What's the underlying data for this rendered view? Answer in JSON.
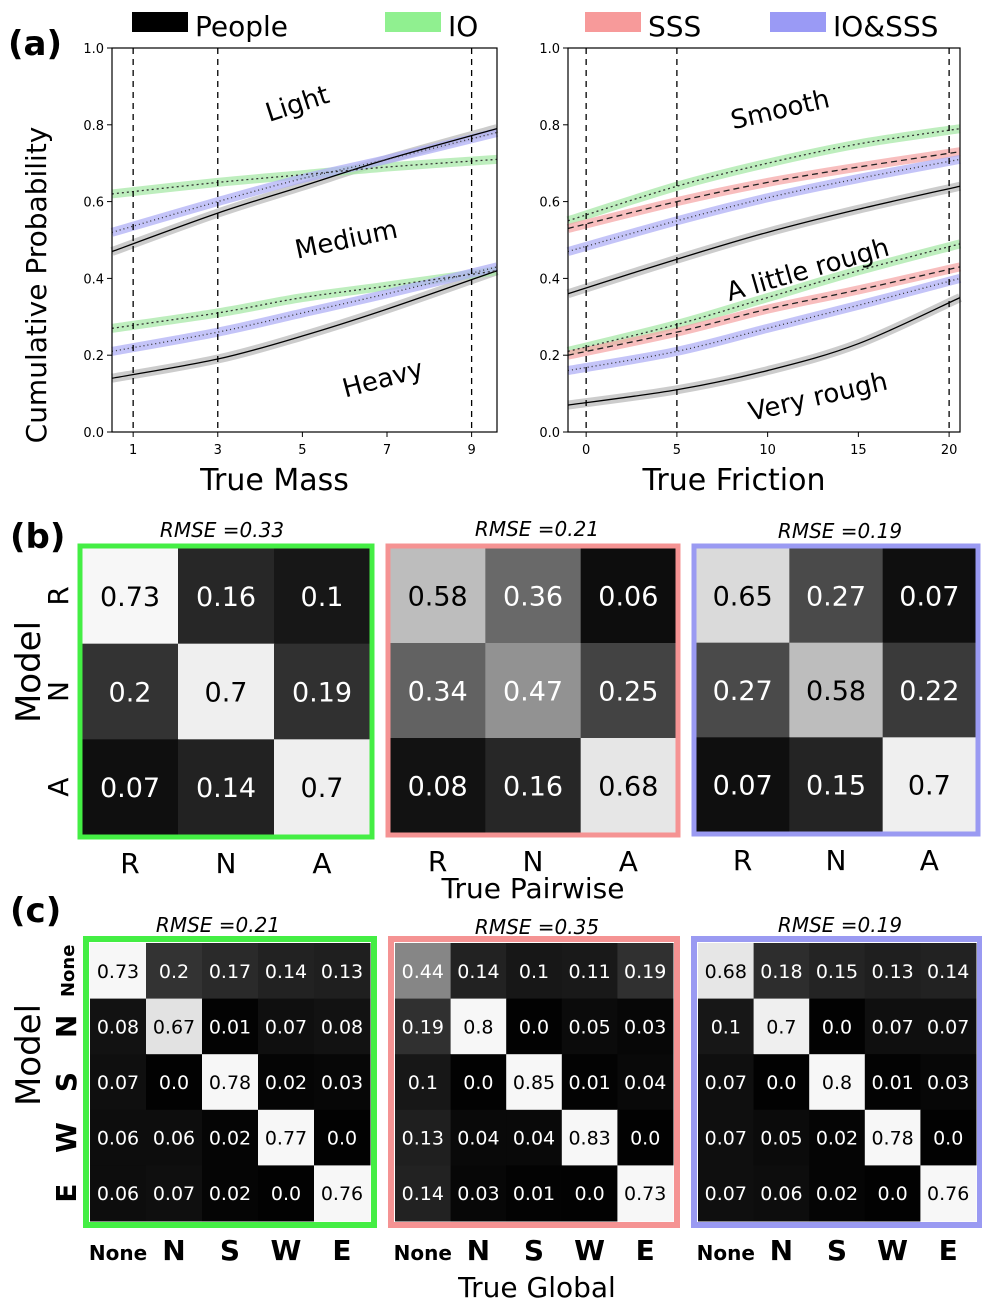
{
  "panel_labels": {
    "a": "(a)",
    "b": "(b)",
    "c": "(c)"
  },
  "legend": [
    {
      "name": "People",
      "color": "#000000"
    },
    {
      "name": "IO",
      "color": "#90f090"
    },
    {
      "name": "SSS",
      "color": "#f79a9a"
    },
    {
      "name": "IO&SSS",
      "color": "#9a9af5"
    }
  ],
  "chart_data": [
    {
      "type": "line",
      "panel": "a-left",
      "xlabel": "True Mass",
      "ylabel": "Cumulative Probability",
      "xlim": [
        0.5,
        9.6
      ],
      "ylim": [
        0,
        1
      ],
      "xticks": [
        "1",
        "3",
        "5",
        "7",
        "9"
      ],
      "yticks": [
        "0.0",
        "0.2",
        "0.4",
        "0.6",
        "0.8",
        "1.0"
      ],
      "vlines": [
        1,
        3,
        9
      ],
      "region_labels": [
        "Light",
        "Medium",
        "Heavy"
      ],
      "series": [
        {
          "name": "People",
          "boundary": "upper",
          "x": [
            0.5,
            3,
            5,
            7,
            9.6
          ],
          "y": [
            0.47,
            0.57,
            0.64,
            0.71,
            0.79
          ]
        },
        {
          "name": "People",
          "boundary": "lower",
          "x": [
            0.5,
            3,
            5,
            7,
            9.6
          ],
          "y": [
            0.14,
            0.19,
            0.25,
            0.32,
            0.42
          ]
        },
        {
          "name": "IO",
          "boundary": "upper",
          "x": [
            0.5,
            3,
            5,
            7,
            9.6
          ],
          "y": [
            0.62,
            0.65,
            0.67,
            0.69,
            0.71
          ]
        },
        {
          "name": "IO",
          "boundary": "lower",
          "x": [
            0.5,
            3,
            5,
            7,
            9.6
          ],
          "y": [
            0.27,
            0.31,
            0.35,
            0.38,
            0.42
          ]
        },
        {
          "name": "IO&SSS",
          "boundary": "upper",
          "x": [
            0.5,
            3,
            5,
            7,
            9.6
          ],
          "y": [
            0.52,
            0.6,
            0.66,
            0.71,
            0.78
          ]
        },
        {
          "name": "IO&SSS",
          "boundary": "lower",
          "x": [
            0.5,
            3,
            5,
            7,
            9.6
          ],
          "y": [
            0.21,
            0.26,
            0.31,
            0.36,
            0.43
          ]
        }
      ]
    },
    {
      "type": "line",
      "panel": "a-right",
      "xlabel": "True Friction",
      "ylabel": "",
      "xlim": [
        -1,
        20.6
      ],
      "ylim": [
        0,
        1
      ],
      "xticks": [
        "0",
        "5",
        "10",
        "15",
        "20"
      ],
      "yticks": [
        "0.0",
        "0.2",
        "0.4",
        "0.6",
        "0.8",
        "1.0"
      ],
      "vlines": [
        0,
        5,
        20
      ],
      "region_labels": [
        "Smooth",
        "A little rough",
        "Very rough"
      ],
      "series": [
        {
          "name": "People",
          "boundary": "upper",
          "x": [
            -1,
            5,
            10,
            15,
            20.6
          ],
          "y": [
            0.36,
            0.45,
            0.52,
            0.58,
            0.64
          ]
        },
        {
          "name": "People",
          "boundary": "lower",
          "x": [
            -1,
            5,
            10,
            15,
            20.6
          ],
          "y": [
            0.07,
            0.11,
            0.16,
            0.23,
            0.35
          ]
        },
        {
          "name": "IO",
          "boundary": "upper",
          "x": [
            -1,
            5,
            10,
            15,
            20.6
          ],
          "y": [
            0.55,
            0.64,
            0.7,
            0.75,
            0.79
          ]
        },
        {
          "name": "IO",
          "boundary": "lower",
          "x": [
            -1,
            5,
            10,
            15,
            20.6
          ],
          "y": [
            0.21,
            0.28,
            0.35,
            0.42,
            0.49
          ]
        },
        {
          "name": "SSS",
          "boundary": "upper",
          "x": [
            -1,
            5,
            10,
            15,
            20.6
          ],
          "y": [
            0.53,
            0.6,
            0.65,
            0.69,
            0.73
          ]
        },
        {
          "name": "SSS",
          "boundary": "lower",
          "x": [
            -1,
            5,
            10,
            15,
            20.6
          ],
          "y": [
            0.2,
            0.26,
            0.32,
            0.37,
            0.43
          ]
        },
        {
          "name": "IO&SSS",
          "boundary": "upper",
          "x": [
            -1,
            5,
            10,
            15,
            20.6
          ],
          "y": [
            0.47,
            0.55,
            0.61,
            0.66,
            0.71
          ]
        },
        {
          "name": "IO&SSS",
          "boundary": "lower",
          "x": [
            -1,
            5,
            10,
            15,
            20.6
          ],
          "y": [
            0.16,
            0.21,
            0.27,
            0.33,
            0.4
          ]
        }
      ]
    },
    {
      "type": "heatmap",
      "panel": "b",
      "model": "IO",
      "frame_color": "#44ee44",
      "title": "RMSE =0.33",
      "row_labels": [
        "R",
        "N",
        "A"
      ],
      "col_labels": [
        "R",
        "N",
        "A"
      ],
      "values": [
        [
          0.73,
          0.16,
          0.1
        ],
        [
          0.2,
          0.7,
          0.19
        ],
        [
          0.07,
          0.14,
          0.7
        ]
      ],
      "display": [
        [
          "0.73",
          "0.16",
          "0.1"
        ],
        [
          "0.2",
          "0.7",
          "0.19"
        ],
        [
          "0.07",
          "0.14",
          "0.7"
        ]
      ]
    },
    {
      "type": "heatmap",
      "panel": "b",
      "model": "SSS",
      "frame_color": "#f59393",
      "title": "RMSE =0.21",
      "row_labels": [
        "R",
        "N",
        "A"
      ],
      "col_labels": [
        "R",
        "N",
        "A"
      ],
      "values": [
        [
          0.58,
          0.36,
          0.06
        ],
        [
          0.34,
          0.47,
          0.25
        ],
        [
          0.08,
          0.16,
          0.68
        ]
      ],
      "display": [
        [
          "0.58",
          "0.36",
          "0.06"
        ],
        [
          "0.34",
          "0.47",
          "0.25"
        ],
        [
          "0.08",
          "0.16",
          "0.68"
        ]
      ]
    },
    {
      "type": "heatmap",
      "panel": "b",
      "model": "IO&SSS",
      "frame_color": "#9a9af2",
      "title": "RMSE =0.19",
      "row_labels": [
        "R",
        "N",
        "A"
      ],
      "col_labels": [
        "R",
        "N",
        "A"
      ],
      "values": [
        [
          0.65,
          0.27,
          0.07
        ],
        [
          0.27,
          0.58,
          0.22
        ],
        [
          0.07,
          0.15,
          0.7
        ]
      ],
      "display": [
        [
          "0.65",
          "0.27",
          "0.07"
        ],
        [
          "0.27",
          "0.58",
          "0.22"
        ],
        [
          "0.07",
          "0.15",
          "0.7"
        ]
      ]
    },
    {
      "type": "heatmap",
      "panel": "c",
      "model": "IO",
      "frame_color": "#44ee44",
      "title": "RMSE =0.21",
      "row_labels": [
        "None",
        "N",
        "S",
        "W",
        "E"
      ],
      "col_labels": [
        "None",
        "N",
        "S",
        "W",
        "E"
      ],
      "values": [
        [
          0.73,
          0.2,
          0.17,
          0.14,
          0.13
        ],
        [
          0.08,
          0.67,
          0.01,
          0.07,
          0.08
        ],
        [
          0.07,
          0.0,
          0.78,
          0.02,
          0.03
        ],
        [
          0.06,
          0.06,
          0.02,
          0.77,
          0.0
        ],
        [
          0.06,
          0.07,
          0.02,
          0.0,
          0.76
        ]
      ],
      "display": [
        [
          "0.73",
          "0.2",
          "0.17",
          "0.14",
          "0.13"
        ],
        [
          "0.08",
          "0.67",
          "0.01",
          "0.07",
          "0.08"
        ],
        [
          "0.07",
          "0.0",
          "0.78",
          "0.02",
          "0.03"
        ],
        [
          "0.06",
          "0.06",
          "0.02",
          "0.77",
          "0.0"
        ],
        [
          "0.06",
          "0.07",
          "0.02",
          "0.0",
          "0.76"
        ]
      ]
    },
    {
      "type": "heatmap",
      "panel": "c",
      "model": "SSS",
      "frame_color": "#f59393",
      "title": "RMSE =0.35",
      "row_labels": [
        "None",
        "N",
        "S",
        "W",
        "E"
      ],
      "col_labels": [
        "None",
        "N",
        "S",
        "W",
        "E"
      ],
      "values": [
        [
          0.44,
          0.14,
          0.1,
          0.11,
          0.19
        ],
        [
          0.19,
          0.8,
          0.0,
          0.05,
          0.03
        ],
        [
          0.1,
          0.0,
          0.85,
          0.01,
          0.04
        ],
        [
          0.13,
          0.04,
          0.04,
          0.83,
          0.0
        ],
        [
          0.14,
          0.03,
          0.01,
          0.0,
          0.73
        ]
      ],
      "display": [
        [
          "0.44",
          "0.14",
          "0.1",
          "0.11",
          "0.19"
        ],
        [
          "0.19",
          "0.8",
          "0.0",
          "0.05",
          "0.03"
        ],
        [
          "0.1",
          "0.0",
          "0.85",
          "0.01",
          "0.04"
        ],
        [
          "0.13",
          "0.04",
          "0.04",
          "0.83",
          "0.0"
        ],
        [
          "0.14",
          "0.03",
          "0.01",
          "0.0",
          "0.73"
        ]
      ]
    },
    {
      "type": "heatmap",
      "panel": "c",
      "model": "IO&SSS",
      "frame_color": "#9a9af2",
      "title": "RMSE =0.19",
      "row_labels": [
        "None",
        "N",
        "S",
        "W",
        "E"
      ],
      "col_labels": [
        "None",
        "N",
        "S",
        "W",
        "E"
      ],
      "values": [
        [
          0.68,
          0.18,
          0.15,
          0.13,
          0.14
        ],
        [
          0.1,
          0.7,
          0.0,
          0.07,
          0.07
        ],
        [
          0.07,
          0.0,
          0.8,
          0.01,
          0.03
        ],
        [
          0.07,
          0.05,
          0.02,
          0.78,
          0.0
        ],
        [
          0.07,
          0.06,
          0.02,
          0.0,
          0.76
        ]
      ],
      "display": [
        [
          "0.68",
          "0.18",
          "0.15",
          "0.13",
          "0.14"
        ],
        [
          "0.1",
          "0.7",
          "0.0",
          "0.07",
          "0.07"
        ],
        [
          "0.07",
          "0.0",
          "0.8",
          "0.01",
          "0.03"
        ],
        [
          "0.07",
          "0.05",
          "0.02",
          "0.78",
          "0.0"
        ],
        [
          "0.07",
          "0.06",
          "0.02",
          "0.0",
          "0.76"
        ]
      ]
    }
  ],
  "row_axis_label": "Model",
  "b_xlabel": "True Pairwise",
  "c_xlabel": "True Global"
}
